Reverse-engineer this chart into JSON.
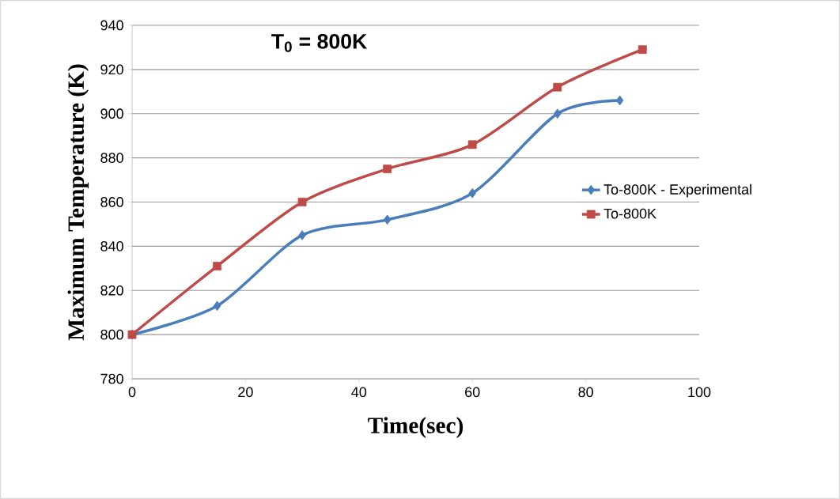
{
  "chart_data": {
    "type": "line",
    "title": "T$_{0}$ = 800K",
    "xlabel": "Time(sec)",
    "ylabel": "Maximum Temperature (K)",
    "series": [
      {
        "name": "To-800K - Experimental",
        "color": "#4a7ebb",
        "marker": "diamond",
        "x": [
          0,
          15,
          30,
          45,
          60,
          75,
          86
        ],
        "values": [
          800,
          813,
          845,
          852,
          864,
          900,
          906
        ]
      },
      {
        "name": "To-800K",
        "color": "#be4b48",
        "marker": "square",
        "x": [
          0,
          15,
          30,
          45,
          60,
          75,
          90
        ],
        "values": [
          800,
          831,
          860,
          875,
          886,
          912,
          929
        ]
      }
    ],
    "xlim": [
      0,
      100
    ],
    "xticks": [
      0,
      20,
      40,
      60,
      80,
      100
    ],
    "ylim": [
      780,
      940
    ],
    "yticks": [
      780,
      800,
      820,
      840,
      860,
      880,
      900,
      920,
      940
    ],
    "grid": "y",
    "legend": "right"
  }
}
